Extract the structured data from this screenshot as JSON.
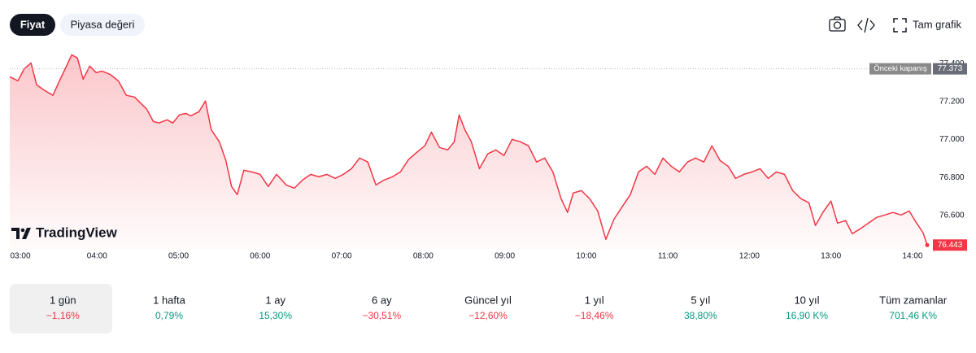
{
  "tabs": [
    "Fiyat",
    "Piyasa değeri"
  ],
  "toolbar": {
    "full_chart": "Tam grafik"
  },
  "logo": "TradingView",
  "chart_data": {
    "type": "line",
    "color": "#f23645",
    "x": [
      2.93,
      3.03,
      3.11,
      3.19,
      3.26,
      3.36,
      3.46,
      3.53,
      3.61,
      3.69,
      3.76,
      3.83,
      3.91,
      3.99,
      4.06,
      4.16,
      4.26,
      4.36,
      4.46,
      4.53,
      4.61,
      4.69,
      4.76,
      4.86,
      4.93,
      5.01,
      5.09,
      5.15,
      5.25,
      5.33,
      5.4,
      5.5,
      5.58,
      5.65,
      5.72,
      5.8,
      5.9,
      6.0,
      6.1,
      6.2,
      6.32,
      6.42,
      6.52,
      6.62,
      6.72,
      6.82,
      6.92,
      7.02,
      7.12,
      7.22,
      7.32,
      7.42,
      7.52,
      7.62,
      7.72,
      7.82,
      7.92,
      8.02,
      8.1,
      8.2,
      8.3,
      8.38,
      8.44,
      8.51,
      8.59,
      8.69,
      8.79,
      8.89,
      8.99,
      9.09,
      9.19,
      9.29,
      9.39,
      9.49,
      9.59,
      9.69,
      9.77,
      9.84,
      9.94,
      10.04,
      10.14,
      10.24,
      10.34,
      10.44,
      10.54,
      10.64,
      10.74,
      10.84,
      10.94,
      11.04,
      11.14,
      11.24,
      11.34,
      11.44,
      11.54,
      11.64,
      11.74,
      11.83,
      11.93,
      12.03,
      12.13,
      12.23,
      12.33,
      12.43,
      12.53,
      12.63,
      12.73,
      12.81,
      12.9,
      13.0,
      13.08,
      13.18,
      13.26,
      13.36,
      13.46,
      13.56,
      13.66,
      13.76,
      13.86,
      13.96,
      14.03,
      14.13,
      14.18
    ],
    "values": [
      77.331,
      77.31,
      77.374,
      77.404,
      77.288,
      77.258,
      77.233,
      77.301,
      77.374,
      77.447,
      77.43,
      77.318,
      77.387,
      77.353,
      77.361,
      77.344,
      77.31,
      77.233,
      77.224,
      77.194,
      77.16,
      77.095,
      77.087,
      77.104,
      77.087,
      77.13,
      77.138,
      77.125,
      77.147,
      77.203,
      77.052,
      76.988,
      76.889,
      76.752,
      76.709,
      76.838,
      76.829,
      76.816,
      76.752,
      76.816,
      76.76,
      76.743,
      76.786,
      76.816,
      76.803,
      76.816,
      76.795,
      76.816,
      76.846,
      76.902,
      76.881,
      76.76,
      76.786,
      76.803,
      76.829,
      76.894,
      76.932,
      76.967,
      77.039,
      76.958,
      76.945,
      76.988,
      77.13,
      77.052,
      76.988,
      76.846,
      76.924,
      76.945,
      76.915,
      77.001,
      76.988,
      76.967,
      76.881,
      76.902,
      76.829,
      76.688,
      76.615,
      76.718,
      76.73,
      76.688,
      76.623,
      76.473,
      76.58,
      76.645,
      76.709,
      76.829,
      76.859,
      76.816,
      76.902,
      76.859,
      76.829,
      76.881,
      76.902,
      76.881,
      76.967,
      76.889,
      76.859,
      76.795,
      76.816,
      76.829,
      76.846,
      76.795,
      76.829,
      76.816,
      76.73,
      76.688,
      76.666,
      76.546,
      76.615,
      76.675,
      76.559,
      76.572,
      76.503,
      76.529,
      76.559,
      76.589,
      76.602,
      76.615,
      76.602,
      76.623,
      76.572,
      76.507,
      76.443
    ],
    "xlim": [
      2.93,
      14.18
    ],
    "ylim": [
      76.44,
      77.47
    ],
    "xticks": [
      {
        "value": 3,
        "label": "03:00"
      },
      {
        "value": 4,
        "label": "04:00"
      },
      {
        "value": 5,
        "label": "05:00"
      },
      {
        "value": 6,
        "label": "06:00"
      },
      {
        "value": 7,
        "label": "07:00"
      },
      {
        "value": 8,
        "label": "08:00"
      },
      {
        "value": 9,
        "label": "09:00"
      },
      {
        "value": 10,
        "label": "10:00"
      },
      {
        "value": 11,
        "label": "11:00"
      },
      {
        "value": 12,
        "label": "12:00"
      },
      {
        "value": 13,
        "label": "13:00"
      },
      {
        "value": 14,
        "label": "14:00"
      }
    ],
    "yticks": [
      {
        "value": 76.6,
        "label": "76.600"
      },
      {
        "value": 76.8,
        "label": "76.800"
      },
      {
        "value": 77.0,
        "label": "77.000"
      },
      {
        "value": 77.2,
        "label": "77.200"
      },
      {
        "value": 77.4,
        "label": "77.400"
      }
    ],
    "previous_close": {
      "label": "Önceki kapanış",
      "value": 77.373
    }
  },
  "periods": [
    {
      "label": "1 gün",
      "change": "−1,16%",
      "color": "#f23645"
    },
    {
      "label": "1 hafta",
      "change": "0,79%",
      "color": "#089981"
    },
    {
      "label": "1 ay",
      "change": "15,30%",
      "color": "#089981"
    },
    {
      "label": "6 ay",
      "change": "−30,51%",
      "color": "#f23645"
    },
    {
      "label": "Güncel yıl",
      "change": "−12,60%",
      "color": "#f23645"
    },
    {
      "label": "1 yıl",
      "change": "−18,46%",
      "color": "#f23645"
    },
    {
      "label": "5 yıl",
      "change": "38,80%",
      "color": "#089981"
    },
    {
      "label": "10 yıl",
      "change": "16,90 K%",
      "color": "#089981"
    },
    {
      "label": "Tüm zamanlar",
      "change": "701,46 K%",
      "color": "#089981"
    }
  ]
}
